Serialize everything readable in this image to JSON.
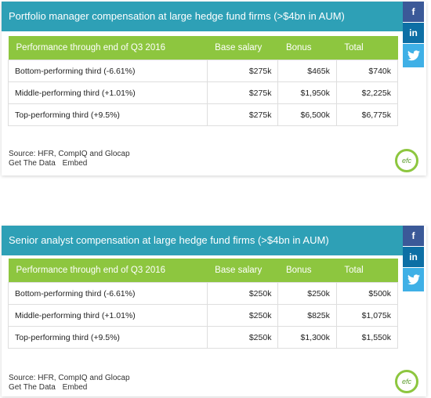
{
  "social": {
    "facebook": "f",
    "linkedin": "in",
    "twitter": "twitter-bird"
  },
  "tables": [
    {
      "title": "Portfolio manager compensation at large hedge fund firms (>$4bn in AUM)",
      "headers": [
        "Performance through end of Q3 2016",
        "Base salary",
        "Bonus",
        "Total"
      ],
      "rows": [
        [
          "Bottom-performing third (-6.61%)",
          "$275k",
          "$465k",
          "$740k"
        ],
        [
          "Middle-performing third (+1.01%)",
          "$275k",
          "$1,950k",
          "$2,225k"
        ],
        [
          "Top-performing third (+9.5%)",
          "$275k",
          "$6,500k",
          "$6,775k"
        ]
      ],
      "source": "Source: HFR, CompIQ and Glocap",
      "get_data": "Get The Data",
      "embed": "Embed",
      "logo_text": "efc"
    },
    {
      "title": "Senior analyst compensation at large hedge fund firms (>$4bn in AUM)",
      "headers": [
        "Performance through end of Q3 2016",
        "Base salary",
        "Bonus",
        "Total"
      ],
      "rows": [
        [
          "Bottom-performing third (-6.61%)",
          "$250k",
          "$250k",
          "$500k"
        ],
        [
          "Middle-performing third (+1.01%)",
          "$250k",
          "$825k",
          "$1,075k"
        ],
        [
          "Top-performing third (+9.5%)",
          "$250k",
          "$1,300k",
          "$1,550k"
        ]
      ],
      "source": "Source: HFR, CompIQ and Glocap",
      "get_data": "Get The Data",
      "embed": "Embed",
      "logo_text": "efc"
    }
  ]
}
